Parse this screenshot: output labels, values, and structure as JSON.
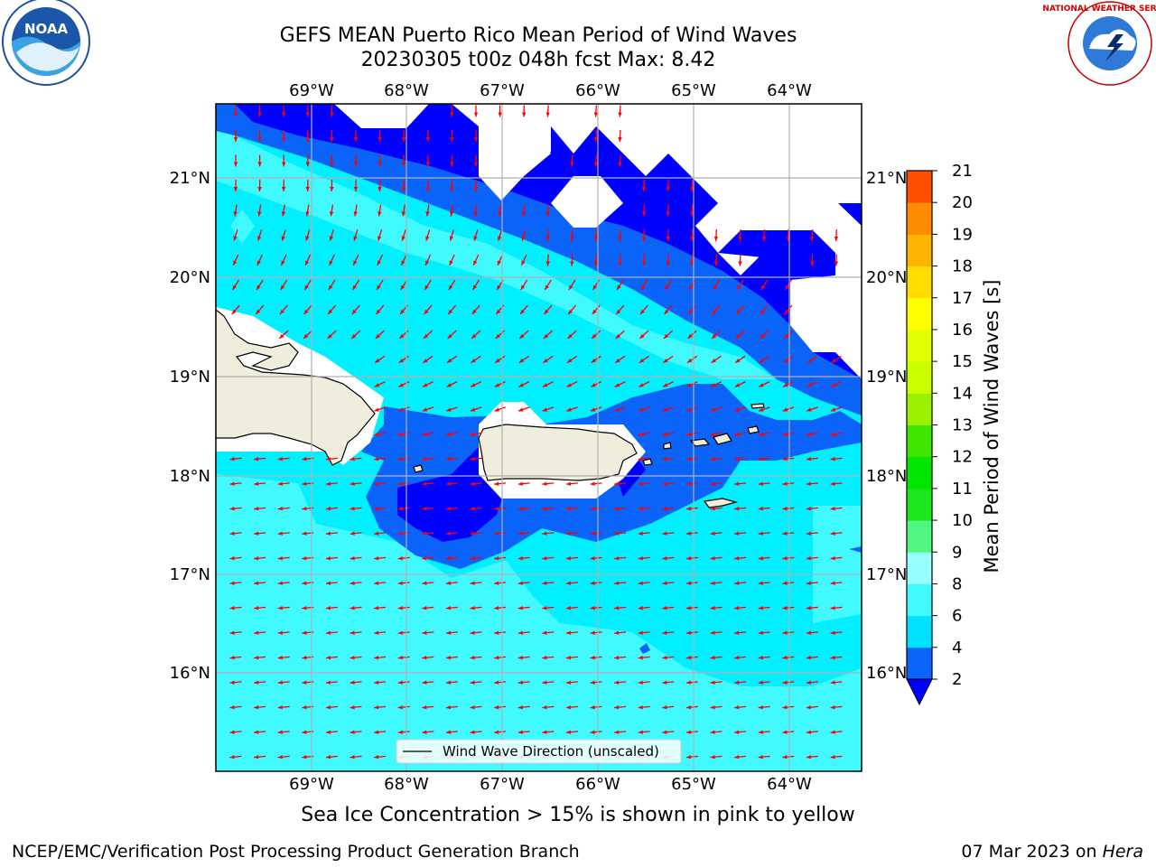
{
  "title": {
    "line1": "GEFS MEAN Puerto Rico Mean Period of Wind Waves",
    "line2": "20230305 t00z 048h fcst   Max: 8.42"
  },
  "logos": {
    "left": "NOAA",
    "right": "NATIONAL WEATHER SERVICE"
  },
  "map": {
    "lon_labels": [
      "69°W",
      "68°W",
      "67°W",
      "66°W",
      "65°W",
      "64°W"
    ],
    "lat_labels": [
      "21°N",
      "20°N",
      "19°N",
      "18°N",
      "17°N",
      "16°N"
    ],
    "legend_label": "Wind Wave Direction (unscaled)",
    "colors": {
      "land": "#efeedd",
      "arrow": "#ff0000",
      "grid": "#b0b0b0"
    }
  },
  "colorbar": {
    "label": "Mean Period of Wind Waves [s]",
    "ticks": [
      "2",
      "4",
      "6",
      "8",
      "9",
      "10",
      "11",
      "12",
      "13",
      "14",
      "15",
      "16",
      "17",
      "18",
      "19",
      "20",
      "21"
    ],
    "colors": [
      "#0a64fa",
      "#00e1ff",
      "#41faff",
      "#96ffff",
      "#50f582",
      "#1de61d",
      "#00e600",
      "#41e600",
      "#9bf000",
      "#c8ff00",
      "#e1ff00",
      "#ffff00",
      "#ffdc00",
      "#ffb400",
      "#ff8c00",
      "#ff5000",
      "#ff2800",
      "#ff0000"
    ],
    "under_color": "#0000ff"
  },
  "bottom_note": "Sea Ice Concentration > 15% is shown in pink to yellow",
  "footer": {
    "left": "NCEP/EMC/Verification Post Processing Product Generation Branch",
    "right_prefix": "07 Mar 2023 on ",
    "right_italic": "Hera"
  }
}
